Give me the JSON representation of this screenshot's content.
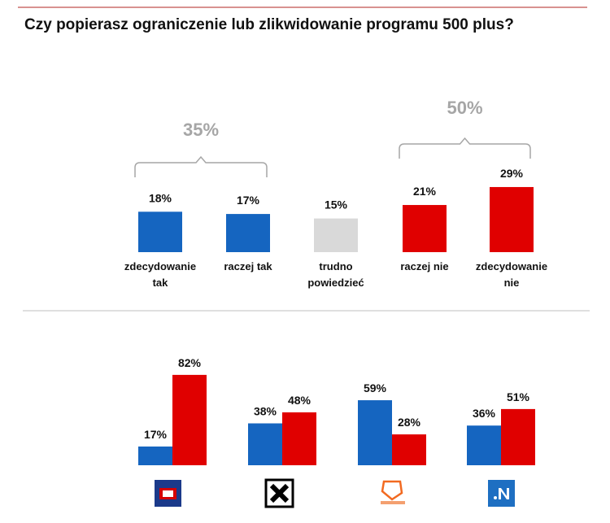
{
  "title": "Czy popierasz ograniczenie lub zlikwidowanie programu 500 plus?",
  "chart_data": [
    {
      "type": "bar",
      "categories": [
        "zdecydowanie tak",
        "raczej tak",
        "trudno powiedzieć",
        "raczej nie",
        "zdecydowanie nie"
      ],
      "values": [
        18,
        17,
        15,
        21,
        29
      ],
      "value_labels": [
        "18%",
        "17%",
        "15%",
        "21%",
        "29%"
      ],
      "colors": [
        "#1565c0",
        "#1565c0",
        "#d9d9d9",
        "#e00000",
        "#e00000"
      ],
      "annotations": [
        "35%",
        "50%"
      ]
    },
    {
      "type": "grouped-bar",
      "categories": [
        null,
        null,
        null,
        null
      ],
      "series": [
        {
          "color": "#1565c0",
          "values": [
            17,
            38,
            59,
            36
          ],
          "value_labels": [
            "17%",
            "38%",
            "59%",
            "36%"
          ]
        },
        {
          "color": "#e00000",
          "values": [
            82,
            48,
            28,
            51
          ],
          "value_labels": [
            "82%",
            "48%",
            "28%",
            "51%"
          ]
        }
      ]
    }
  ]
}
